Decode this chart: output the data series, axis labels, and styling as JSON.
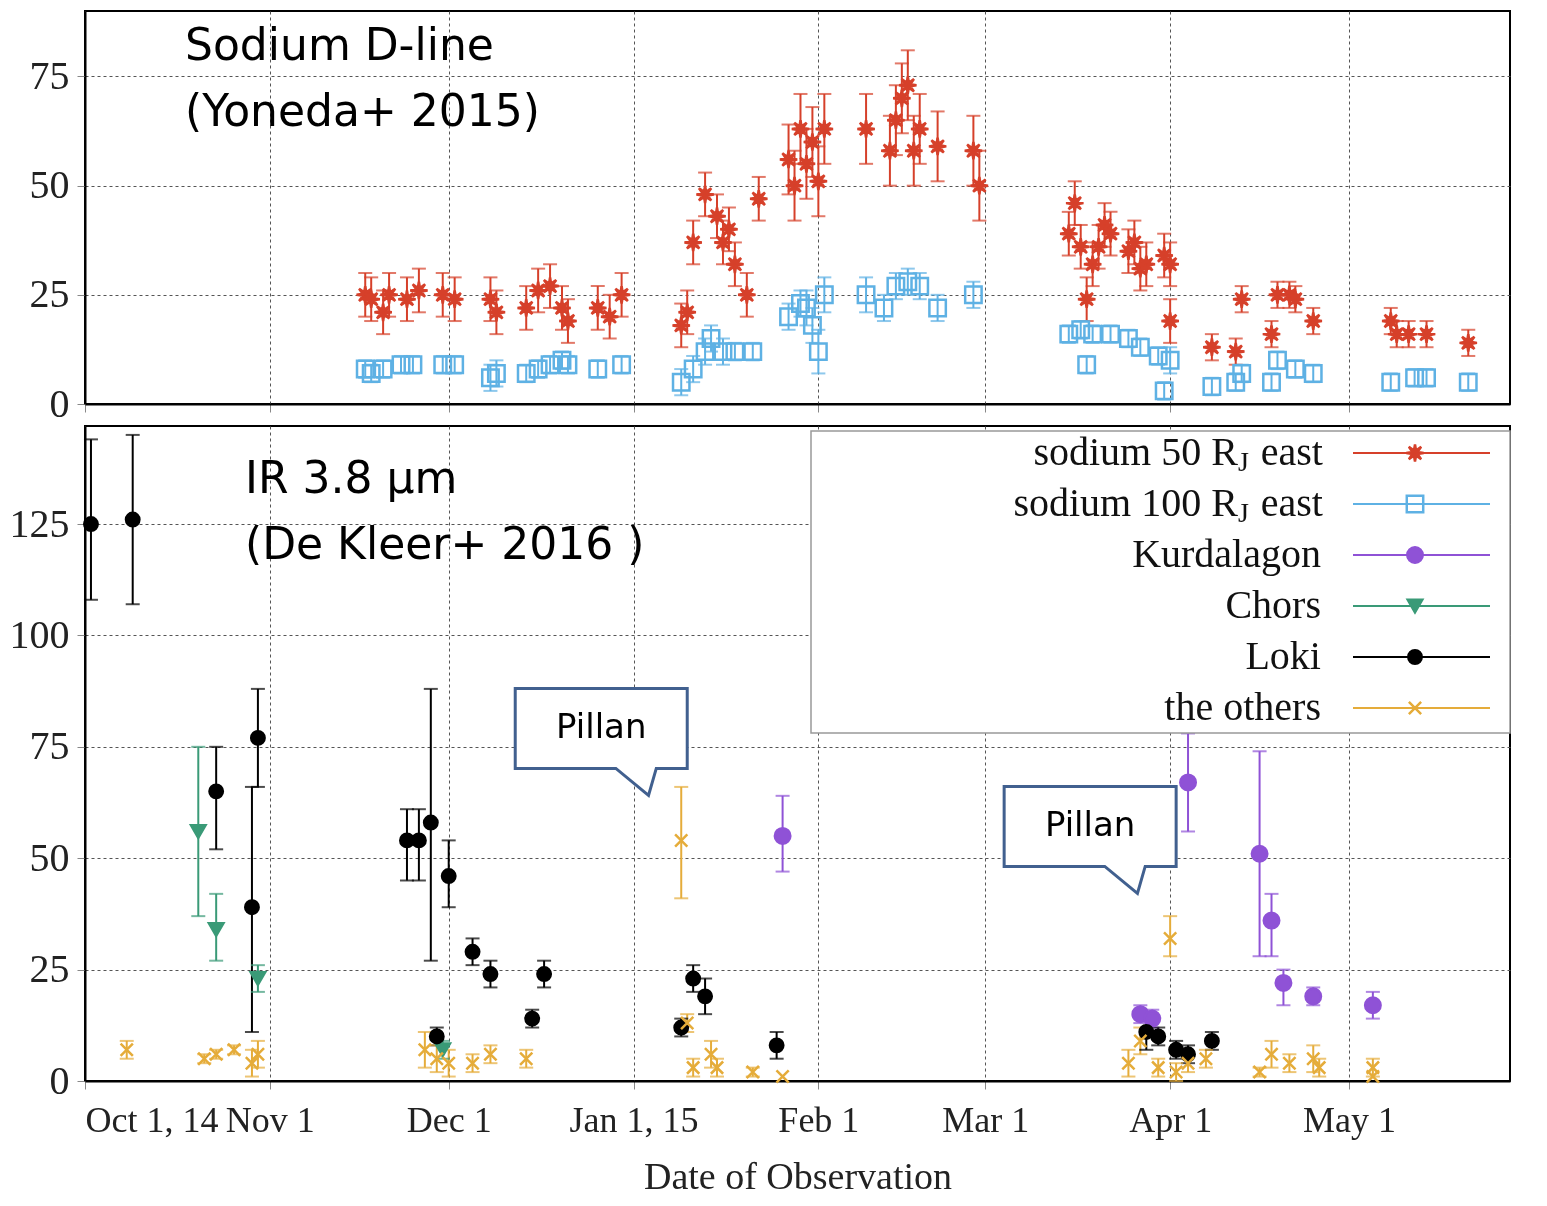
{
  "chart_data": [
    {
      "type": "scatter",
      "annotations": [
        "Sodium D-line\n(Yoneda+ 2015)"
      ],
      "xlim": [
        "2014-10-01",
        "2015-05-28"
      ],
      "ylim": [
        0,
        90
      ],
      "yticks": [
        0,
        25,
        50,
        75
      ],
      "xticks": [
        {
          "value": "2014-10-01",
          "label": null
        },
        {
          "value": "2014-11-01",
          "label": null
        },
        {
          "value": "2014-12-01",
          "label": null
        },
        {
          "value": "2015-01-01",
          "label": null
        },
        {
          "value": "2015-02-01",
          "label": null
        },
        {
          "value": "2015-03-01",
          "label": null
        },
        {
          "value": "2015-04-01",
          "label": null
        },
        {
          "value": "2015-05-01",
          "label": null
        }
      ],
      "tick_labels": "y",
      "grid": true,
      "legend": "bottom right",
      "series": [
        {
          "name": "sodium 50 R$_{J}$ east",
          "color": "#d6402a",
          "marker": "star",
          "x": [
            "2014-11-17",
            "2014-11-18",
            "2014-11-20",
            "2014-11-21",
            "2014-11-24",
            "2014-11-26",
            "2014-11-30",
            "2014-12-02",
            "2014-12-08",
            "2014-12-09",
            "2014-12-14",
            "2014-12-16",
            "2014-12-18",
            "2014-12-20",
            "2014-12-21",
            "2014-12-26",
            "2014-12-28",
            "2014-12-30",
            "2015-01-09",
            "2015-01-10",
            "2015-01-11",
            "2015-01-13",
            "2015-01-15",
            "2015-01-16",
            "2015-01-17",
            "2015-01-18",
            "2015-01-20",
            "2015-01-22",
            "2015-01-27",
            "2015-01-28",
            "2015-01-29",
            "2015-01-30",
            "2015-01-31",
            "2015-02-01",
            "2015-02-02",
            "2015-02-09",
            "2015-02-13",
            "2015-02-14",
            "2015-02-15",
            "2015-02-16",
            "2015-02-17",
            "2015-02-18",
            "2015-02-21",
            "2015-02-27",
            "2015-02-28",
            "2015-03-15",
            "2015-03-16",
            "2015-03-17",
            "2015-03-18",
            "2015-03-19",
            "2015-03-20",
            "2015-03-21",
            "2015-03-22",
            "2015-03-25",
            "2015-03-26",
            "2015-03-27",
            "2015-03-28",
            "2015-03-31",
            "2015-04-01",
            "2015-04-01",
            "2015-04-08",
            "2015-04-12",
            "2015-04-13",
            "2015-04-18",
            "2015-04-19",
            "2015-04-21",
            "2015-04-22",
            "2015-04-25",
            "2015-05-08",
            "2015-05-09",
            "2015-05-11",
            "2015-05-14",
            "2015-05-21"
          ],
          "values": [
            25,
            24,
            21,
            25,
            24,
            26,
            25,
            24,
            24,
            21,
            22,
            26,
            27,
            22,
            19,
            22,
            20,
            25,
            18,
            21,
            37,
            48,
            43,
            37,
            40,
            32,
            25,
            47,
            56,
            50,
            63,
            55,
            60,
            51,
            63,
            63,
            58,
            65,
            70,
            73,
            58,
            63,
            59,
            58,
            50,
            39,
            46,
            36,
            24,
            32,
            36,
            41,
            39,
            35,
            37,
            31,
            32,
            34,
            32,
            19,
            13,
            12,
            24,
            16,
            25,
            25,
            24,
            19,
            19,
            16,
            16,
            16,
            14
          ],
          "errors": [
            5,
            5,
            5,
            5,
            5,
            5,
            5,
            5,
            5,
            5,
            5,
            5,
            5,
            5,
            5,
            5,
            5,
            5,
            5,
            5,
            5,
            5,
            5,
            5,
            5,
            5,
            5,
            5,
            8,
            8,
            8,
            8,
            8,
            8,
            8,
            8,
            8,
            8,
            8,
            8,
            8,
            8,
            8,
            8,
            8,
            5,
            5,
            5,
            5,
            5,
            5,
            5,
            5,
            5,
            5,
            5,
            5,
            5,
            5,
            5,
            3,
            3,
            3,
            3,
            3,
            3,
            3,
            3,
            3,
            3,
            3,
            3,
            3
          ]
        },
        {
          "name": "sodium 100 R$_{J}$ east",
          "color": "#5eb1e4",
          "marker": "square",
          "x": [
            "2014-11-17",
            "2014-11-18",
            "2014-11-20",
            "2014-11-23",
            "2014-11-25",
            "2014-11-30",
            "2014-12-02",
            "2014-12-08",
            "2014-12-09",
            "2014-12-14",
            "2014-12-16",
            "2014-12-18",
            "2014-12-20",
            "2014-12-21",
            "2014-12-26",
            "2014-12-30",
            "2015-01-09",
            "2015-01-11",
            "2015-01-13",
            "2015-01-14",
            "2015-01-16",
            "2015-01-18",
            "2015-01-21",
            "2015-01-27",
            "2015-01-29",
            "2015-01-30",
            "2015-01-31",
            "2015-02-01",
            "2015-02-02",
            "2015-02-09",
            "2015-02-12",
            "2015-02-14",
            "2015-02-16",
            "2015-02-18",
            "2015-02-21",
            "2015-02-27",
            "2015-03-15",
            "2015-03-17",
            "2015-03-18",
            "2015-03-19",
            "2015-03-22",
            "2015-03-25",
            "2015-03-27",
            "2015-03-30",
            "2015-03-31",
            "2015-04-01",
            "2015-04-08",
            "2015-04-12",
            "2015-04-13",
            "2015-04-18",
            "2015-04-19",
            "2015-04-22",
            "2015-04-25",
            "2015-05-08",
            "2015-05-12",
            "2015-05-14",
            "2015-05-21"
          ],
          "values": [
            8,
            7,
            8,
            9,
            9,
            9,
            9,
            6,
            7,
            7,
            8,
            9,
            10,
            9,
            8,
            9,
            5,
            8,
            12,
            15,
            12,
            12,
            12,
            20,
            23,
            22,
            18,
            12,
            25,
            25,
            22,
            27,
            28,
            27,
            22,
            25,
            16,
            17,
            9,
            16,
            16,
            15,
            13,
            11,
            3,
            10,
            4,
            5,
            7,
            5,
            10,
            8,
            7,
            5,
            6,
            6,
            5
          ],
          "errors": [
            2,
            2,
            2,
            2,
            2,
            2,
            2,
            3,
            3,
            2,
            2,
            2,
            2,
            2,
            2,
            2,
            3,
            3,
            3,
            3,
            3,
            2,
            2,
            3,
            3,
            4,
            4,
            5,
            4,
            4,
            3,
            3,
            3,
            3,
            3,
            3,
            2,
            2,
            2,
            2,
            2,
            2,
            2,
            2,
            2,
            3,
            2,
            2,
            2,
            2,
            2,
            2,
            2,
            2,
            2,
            2,
            2
          ]
        }
      ]
    },
    {
      "type": "scatter",
      "xlabel": "Date of Observation",
      "annotations": [
        "IR 3.8 µm\n(De Kleer+ 2016 )",
        {
          "text": "Pillan",
          "x": "2015-01-09",
          "y": 54
        },
        {
          "text": "Pillan",
          "x": "2015-04-01",
          "y": 32
        }
      ],
      "xlim": [
        "2014-10-01",
        "2015-05-28"
      ],
      "ylim": [
        0,
        147
      ],
      "yticks": [
        0,
        25,
        50,
        75,
        100,
        125
      ],
      "xticks": [
        {
          "value": "2014-10-01",
          "label": "Oct 1, 14"
        },
        {
          "value": "2014-11-01",
          "label": "Nov 1"
        },
        {
          "value": "2014-12-01",
          "label": "Dec 1"
        },
        {
          "value": "2015-01-01",
          "label": "Jan 1, 15"
        },
        {
          "value": "2015-02-01",
          "label": "Feb 1"
        },
        {
          "value": "2015-03-01",
          "label": "Mar 1"
        },
        {
          "value": "2015-04-01",
          "label": "Apr 1"
        },
        {
          "value": "2015-05-01",
          "label": "May 1"
        }
      ],
      "grid": true,
      "legend": "top right",
      "series": [
        {
          "name": "Kurdalagon",
          "color": "#8f52d6",
          "marker": "circle",
          "x": [
            "2015-01-26",
            "2015-03-27",
            "2015-03-29",
            "2015-04-04",
            "2015-04-16",
            "2015-04-18",
            "2015-04-20",
            "2015-04-25",
            "2015-05-05"
          ],
          "values": [
            55,
            15,
            14,
            67,
            51,
            36,
            22,
            19,
            17
          ],
          "errors": [
            [
              47,
              64
            ],
            2,
            2,
            [
              56,
              78
            ],
            [
              28,
              74
            ],
            [
              28,
              42
            ],
            [
              17,
              25
            ],
            2,
            3
          ]
        },
        {
          "name": "Chors",
          "color": "#3a9a77",
          "marker": "triangle",
          "x": [
            "2014-10-20",
            "2014-10-23",
            "2014-10-30",
            "2014-11-30"
          ],
          "values": [
            56,
            34,
            23,
            7
          ],
          "errors": [
            [
              37,
              75
            ],
            [
              27,
              42
            ],
            3,
            2
          ]
        },
        {
          "name": "Loki",
          "color": "#000000",
          "marker": "circle",
          "x": [
            "2014-10-02",
            "2014-10-09",
            "2014-10-23",
            "2014-10-29",
            "2014-10-30",
            "2014-11-24",
            "2014-11-26",
            "2014-11-28",
            "2014-11-29",
            "2014-12-01",
            "2014-12-05",
            "2014-12-08",
            "2014-12-15",
            "2014-12-17",
            "2015-01-09",
            "2015-01-11",
            "2015-01-13",
            "2015-01-25",
            "2015-03-28",
            "2015-03-30",
            "2015-04-02",
            "2015-04-04",
            "2015-04-08"
          ],
          "values": [
            125,
            126,
            65,
            39,
            77,
            54,
            54,
            58,
            10,
            46,
            29,
            24,
            14,
            24,
            12,
            23,
            19,
            8,
            11,
            10,
            7,
            6,
            9
          ],
          "errors": [
            [
              108,
              144
            ],
            [
              107,
              145
            ],
            [
              52,
              75
            ],
            [
              11,
              66
            ],
            [
              66,
              88
            ],
            [
              45,
              61
            ],
            [
              45,
              61
            ],
            [
              27,
              88
            ],
            2,
            [
              39,
              54
            ],
            3,
            3,
            2,
            3,
            2,
            3,
            4,
            3,
            4,
            2,
            2,
            2,
            2
          ]
        },
        {
          "name": "the others",
          "color": "#e5ac3a",
          "marker": "cross",
          "x": [
            "2014-10-08",
            "2014-10-21",
            "2014-10-23",
            "2014-10-26",
            "2014-10-29",
            "2014-10-30",
            "2014-11-27",
            "2014-11-29",
            "2014-12-01",
            "2014-12-05",
            "2014-12-08",
            "2014-12-14",
            "2015-01-09",
            "2015-01-10",
            "2015-01-11",
            "2015-01-14",
            "2015-01-15",
            "2015-01-21",
            "2015-01-26",
            "2015-03-25",
            "2015-03-27",
            "2015-03-30",
            "2015-04-01",
            "2015-04-02",
            "2015-04-04",
            "2015-04-07",
            "2015-04-16",
            "2015-04-18",
            "2015-04-21",
            "2015-04-25",
            "2015-04-26",
            "2015-05-05",
            "2015-05-05"
          ],
          "values": [
            7,
            5,
            6,
            7,
            4,
            6,
            7,
            5,
            4,
            4,
            6,
            5,
            54,
            13,
            3,
            6,
            3,
            2,
            1,
            4,
            9,
            3,
            32,
            2,
            4,
            5,
            2,
            6,
            4,
            5,
            3,
            3,
            1
          ],
          "errors": [
            2,
            1,
            1,
            1,
            3,
            3,
            4,
            3,
            3,
            2,
            2,
            2,
            [
              41,
              66
            ],
            2,
            2,
            3,
            2,
            1,
            null,
            3,
            3,
            2,
            [
              28,
              37
            ],
            2,
            2,
            2,
            1,
            3,
            2,
            3,
            2,
            2,
            null
          ]
        }
      ]
    }
  ]
}
